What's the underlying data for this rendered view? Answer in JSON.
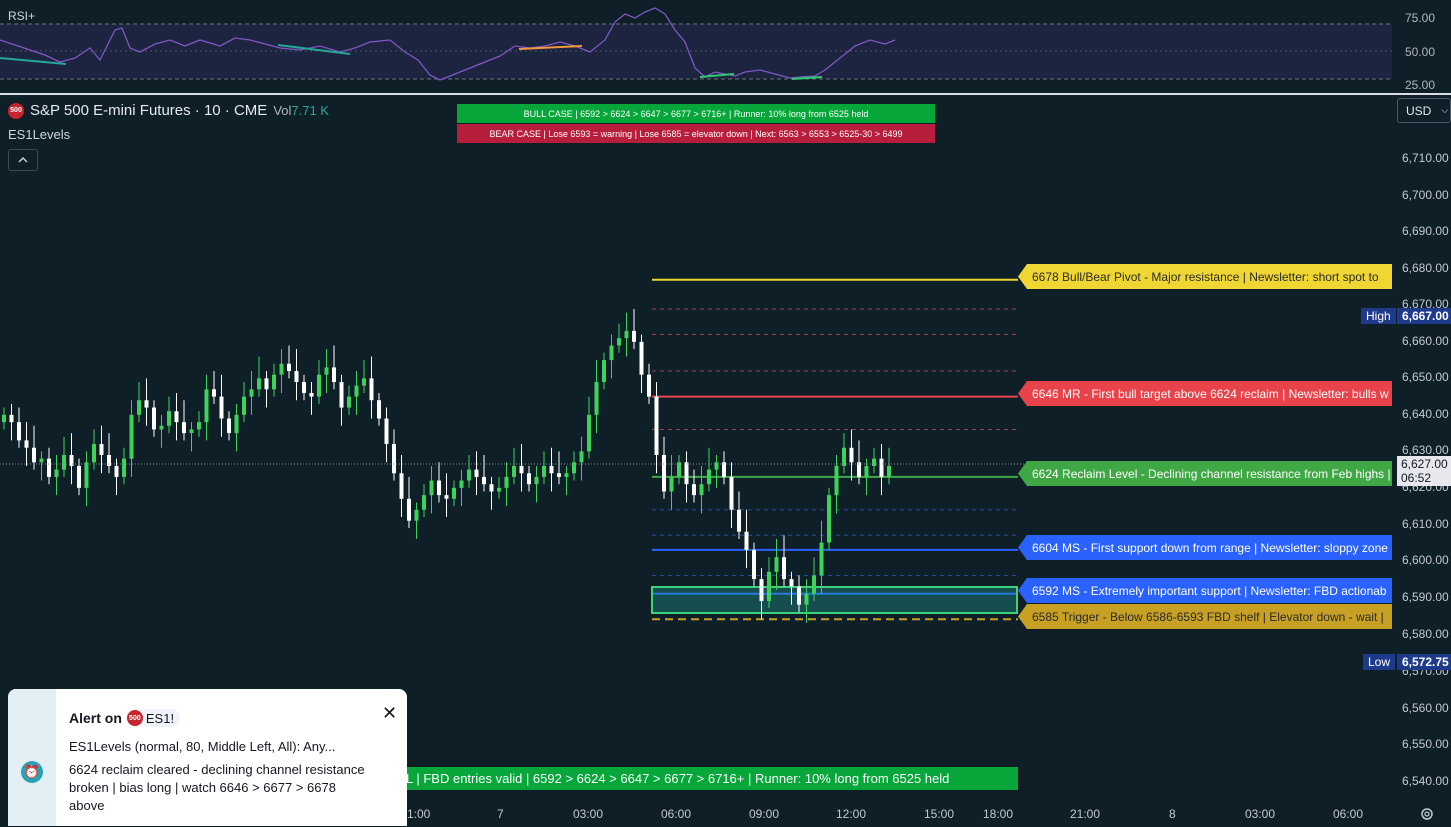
{
  "rsi": {
    "label": "RSI+",
    "ticks": [
      "75.00",
      "50.00",
      "25.00"
    ]
  },
  "header": {
    "symbol_title": "S&P 500 E-mini Futures · 10 · CME",
    "badge": "500",
    "vol_label": "Vol",
    "vol_value": "7.71 K",
    "indicator": "ES1Levels",
    "collapse_icon": "chevron-up-icon"
  },
  "banners": {
    "bull_case": "BULL CASE   |   6592 > 6624 > 6647 > 6677 > 6716+   |   Runner: 10% long from 6525 held",
    "bear_case": "BEAR CASE   |   Lose 6593 = warning   |   Lose 6585 = elevator down   |   Next: 6563 > 6553 > 6525-30 > 6499",
    "bottom": "L   |   FBD entries valid   |   6592 > 6624 > 6647 > 6677 > 6716+   |   Runner: 10% long from 6525 held"
  },
  "currency": "USD",
  "price_axis": {
    "ticks": [
      "6,710.00",
      "6,700.00",
      "6,690.00",
      "6,680.00",
      "6,670.00",
      "6,660.00",
      "6,650.00",
      "6,640.00",
      "6,630.00",
      "6,620.00",
      "6,610.00",
      "6,600.00",
      "6,590.00",
      "6,580.00",
      "6,570.00",
      "6,560.00",
      "6,550.00",
      "6,540.00"
    ],
    "high_label": "High",
    "high_value": "6,667.00",
    "low_label": "Low",
    "low_value": "6,572.75",
    "last_price": "6,627.00",
    "countdown": "06:52"
  },
  "levels": [
    {
      "price": 6678,
      "text": "6678 Bull/Bear Pivot - Major resistance | Newsletter: short spot to",
      "color": "#f0d633",
      "text_color": "#2a2a2a"
    },
    {
      "price": 6646,
      "text": "6646 MR - First bull target above 6624 reclaim | Newsletter: bulls w",
      "color": "#e8434b",
      "text_color": "#ffffff"
    },
    {
      "price": 6624,
      "text": "6624 Reclaim Level - Declining channel resistance from Feb highs |",
      "color": "#3fa845",
      "text_color": "#ffffff"
    },
    {
      "price": 6604,
      "text": "6604 MS - First support down from range | Newsletter: sloppy zone",
      "color": "#2962ff",
      "text_color": "#ffffff"
    },
    {
      "price": 6592,
      "text": "6592 MS - Extremely important support | Newsletter: FBD actionab",
      "color": "#2962ff",
      "text_color": "#ffffff"
    },
    {
      "price": 6585,
      "text": "6585 Trigger - Below 6586-6593 FBD shelf | Elevator down - wait |",
      "color": "#c8a124",
      "text_color": "#2a2a2a"
    }
  ],
  "time_axis": {
    "ticks": [
      "1:00",
      "7",
      "03:00",
      "06:00",
      "09:00",
      "12:00",
      "15:00",
      "18:00",
      "21:00",
      "8",
      "03:00",
      "06:00"
    ]
  },
  "alert": {
    "title": "Alert on",
    "badge": "500",
    "symbol": "ES1!",
    "line1": "ES1Levels (normal, 80, Middle Left, All): Any...",
    "body": "6624 reclaim cleared - declining channel resistance broken | bias long | watch 6646 > 6677 > 6678 above",
    "icon": "alarm-clock-icon",
    "close_icon": "close-icon"
  },
  "chart_data": {
    "type": "candlestick",
    "title": "",
    "xlabel": "",
    "ylabel": "",
    "ylim": [
      6535,
      6720
    ],
    "high": 6667.0,
    "low": 6572.75,
    "last": 6627.0,
    "closes": [
      6641,
      6639,
      6634,
      6632,
      6628,
      6629,
      6624,
      6626,
      6630,
      6627,
      6621,
      6628,
      6633,
      6630,
      6627,
      6624,
      6629,
      6641,
      6645,
      6643,
      6637,
      6638,
      6642,
      6639,
      6636,
      6637,
      6639,
      6648,
      6646,
      6640,
      6636,
      6641,
      6646,
      6648,
      6651,
      6648,
      6652,
      6655,
      6653,
      6650,
      6647,
      6646,
      6652,
      6654,
      6650,
      6643,
      6646,
      6649,
      6651,
      6645,
      6640,
      6633,
      6625,
      6618,
      6612,
      6615,
      6619,
      6623,
      6619,
      6618,
      6621,
      6623,
      6626,
      6624,
      6622,
      6620,
      6621,
      6624,
      6627,
      6625,
      6622,
      6624,
      6627,
      6625,
      6624,
      6625,
      6628,
      6631,
      6641,
      6650,
      6656,
      6660,
      6662,
      6664,
      6661,
      6652,
      6646,
      6630,
      6620,
      6624,
      6628,
      6622,
      6619,
      6622,
      6626,
      6628,
      6624,
      6615,
      6609,
      6604,
      6596,
      6590,
      6598,
      6602,
      6596,
      6594,
      6589,
      6592,
      6597,
      6606,
      6619,
      6627,
      6632,
      6628,
      6624,
      6627,
      6629,
      6624,
      6627
    ]
  }
}
